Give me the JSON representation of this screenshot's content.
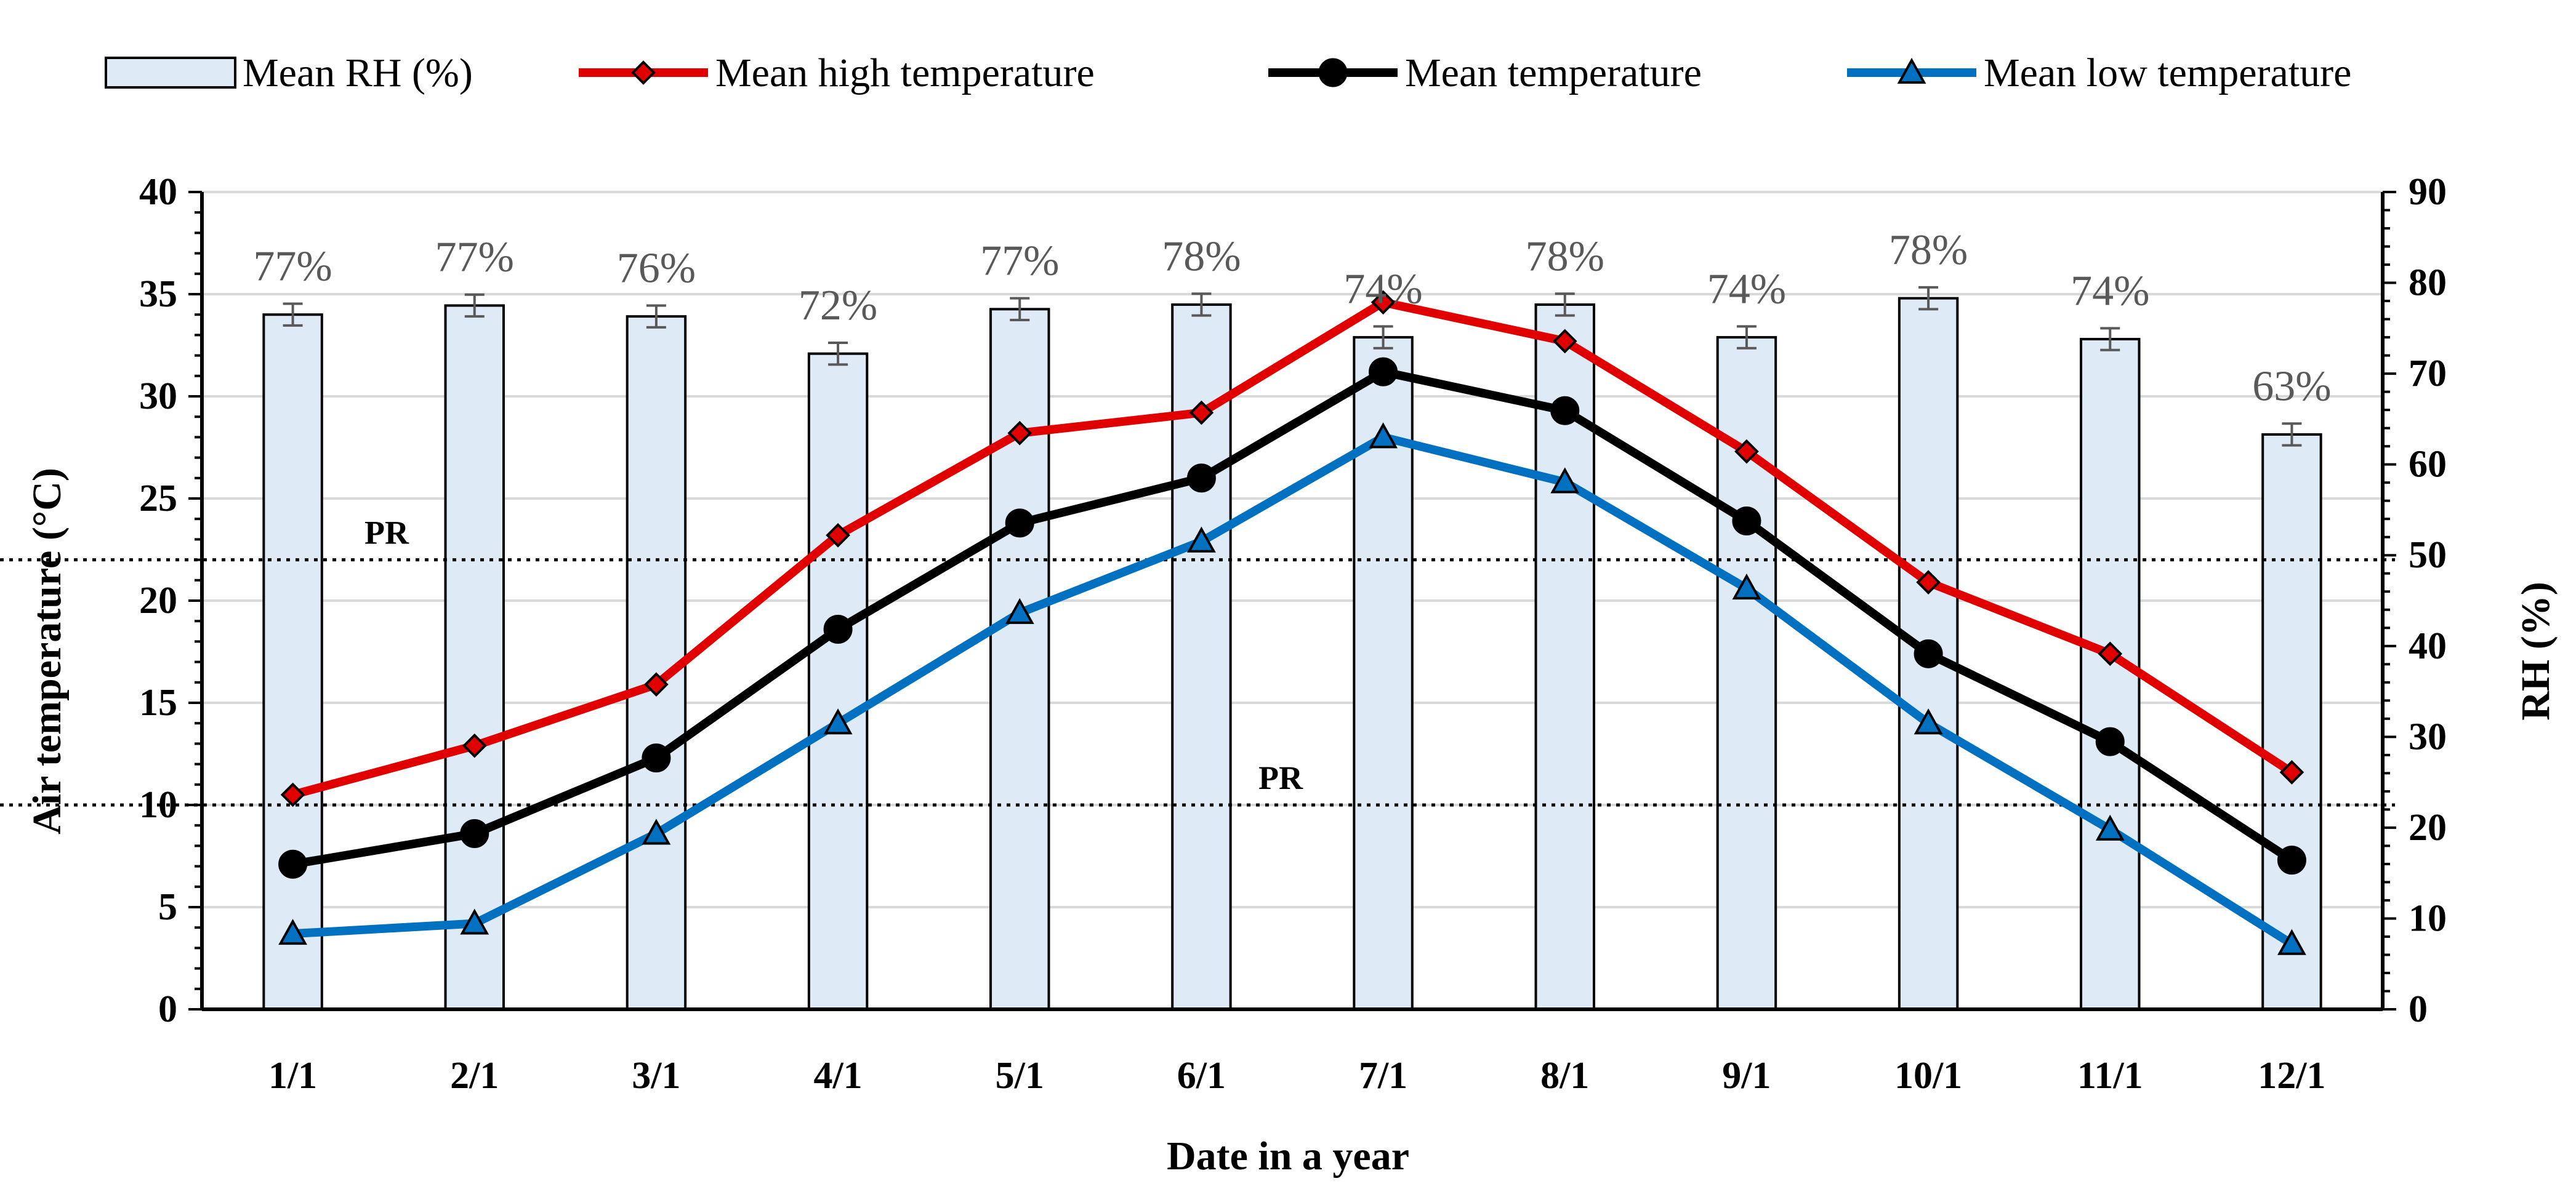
{
  "chart_data": {
    "type": "bar+line",
    "title": "",
    "xlabel": "Date in a year",
    "ylabel_left": "Air temperature (°C)",
    "ylabel_right": "RH (%)",
    "ylim_left": [
      0,
      40
    ],
    "ylim_right": [
      0,
      90
    ],
    "yticks_left": [
      "0",
      "5",
      "10",
      "15",
      "20",
      "25",
      "30",
      "35",
      "40"
    ],
    "yticks_right": [
      "0",
      "10",
      "20",
      "30",
      "40",
      "50",
      "60",
      "70",
      "80",
      "90"
    ],
    "categories": [
      "1/1",
      "2/1",
      "3/1",
      "4/1",
      "5/1",
      "6/1",
      "7/1",
      "8/1",
      "9/1",
      "10/1",
      "11/1",
      "12/1"
    ],
    "grid": true,
    "legend_position": "top",
    "bar_series": {
      "name": "Mean RH (%)",
      "axis": "right",
      "values": [
        76.5,
        77.5,
        76.3,
        72.2,
        77.1,
        77.6,
        74.0,
        77.6,
        74.0,
        78.3,
        73.8,
        63.3
      ],
      "error": [
        1.2,
        1.2,
        1.2,
        1.2,
        1.2,
        1.2,
        1.2,
        1.2,
        1.2,
        1.2,
        1.2,
        1.2
      ],
      "labels": [
        "77%",
        "77%",
        "76%",
        "72%",
        "77%",
        "78%",
        "74%",
        "78%",
        "74%",
        "78%",
        "74%",
        "63%"
      ],
      "fill": "#deebf7",
      "stroke": "#000000"
    },
    "line_series": [
      {
        "name": "Mean high temperature",
        "axis": "left",
        "marker": "diamond",
        "color": "#e00000",
        "values": [
          10.5,
          12.9,
          15.9,
          23.2,
          28.2,
          29.2,
          34.6,
          32.7,
          27.3,
          20.9,
          17.4,
          11.6
        ]
      },
      {
        "name": "Mean temperature",
        "axis": "left",
        "marker": "circle",
        "color": "#000000",
        "values": [
          7.1,
          8.6,
          12.3,
          18.6,
          23.8,
          26.0,
          31.2,
          29.3,
          23.9,
          17.4,
          13.1,
          7.3
        ]
      },
      {
        "name": "Mean low temperature",
        "axis": "left",
        "marker": "triangle",
        "color": "#0070c0",
        "values": [
          3.7,
          4.2,
          8.6,
          14.0,
          19.4,
          22.9,
          28.0,
          25.8,
          20.6,
          14.0,
          8.8,
          3.2
        ]
      }
    ],
    "reference_lines": [
      {
        "label": "PR",
        "value": 22.0,
        "axis": "left",
        "style": "dotted"
      },
      {
        "label": "PR",
        "value": 10.0,
        "axis": "left",
        "style": "dotted"
      }
    ]
  }
}
